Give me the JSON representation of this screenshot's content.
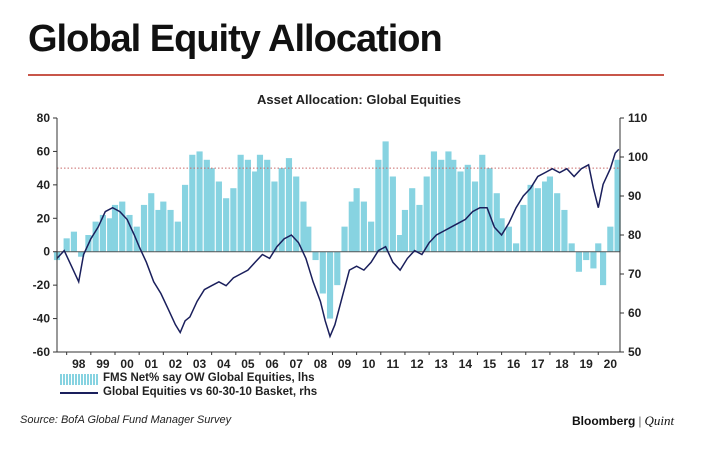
{
  "headline": "Global Equity Allocation",
  "source": "Source: BofA Global Fund Manager Survey",
  "brand": {
    "name": "Bloomberg",
    "separator": "|",
    "sub": "Quint"
  },
  "colors": {
    "bar": "#87d3e1",
    "line": "#1a1f5c",
    "rule": "#c8564a",
    "ref_line": "#c96b6b"
  },
  "chart_data": {
    "type": "bar+line",
    "title": "Asset Allocation: Global Equities",
    "x_ticks": [
      "98",
      "99",
      "00",
      "01",
      "02",
      "03",
      "04",
      "05",
      "06",
      "07",
      "08",
      "09",
      "10",
      "11",
      "12",
      "13",
      "14",
      "15",
      "16",
      "17",
      "18",
      "19",
      "20"
    ],
    "x_range": [
      1997.6,
      2020.9
    ],
    "y_left": {
      "range": [
        -60,
        80
      ],
      "ticks": [
        -60,
        -40,
        -20,
        0,
        20,
        40,
        60,
        80
      ]
    },
    "y_right": {
      "range": [
        50,
        110
      ],
      "ticks": [
        50,
        60,
        70,
        80,
        90,
        100,
        110
      ]
    },
    "reference_line": {
      "axis": "left",
      "value": 50,
      "style": "dotted"
    },
    "legend": [
      {
        "name": "FMS Net% say OW Global Equities, lhs",
        "kind": "bar"
      },
      {
        "name": "Global Equities vs 60-30-10 Basket, rhs",
        "kind": "line"
      }
    ],
    "bar_series": {
      "name": "FMS Net% say OW Global Equities, lhs",
      "points": [
        [
          1997.6,
          -5
        ],
        [
          1998.0,
          8
        ],
        [
          1998.3,
          12
        ],
        [
          1998.6,
          -3
        ],
        [
          1998.9,
          10
        ],
        [
          1999.2,
          18
        ],
        [
          1999.5,
          22
        ],
        [
          1999.8,
          20
        ],
        [
          2000.0,
          28
        ],
        [
          2000.3,
          30
        ],
        [
          2000.6,
          22
        ],
        [
          2000.9,
          15
        ],
        [
          2001.2,
          28
        ],
        [
          2001.5,
          35
        ],
        [
          2001.8,
          25
        ],
        [
          2002.0,
          30
        ],
        [
          2002.3,
          25
        ],
        [
          2002.6,
          18
        ],
        [
          2002.9,
          40
        ],
        [
          2003.2,
          58
        ],
        [
          2003.5,
          60
        ],
        [
          2003.8,
          55
        ],
        [
          2004.0,
          50
        ],
        [
          2004.3,
          42
        ],
        [
          2004.6,
          32
        ],
        [
          2004.9,
          38
        ],
        [
          2005.2,
          58
        ],
        [
          2005.5,
          55
        ],
        [
          2005.8,
          48
        ],
        [
          2006.0,
          58
        ],
        [
          2006.3,
          55
        ],
        [
          2006.6,
          42
        ],
        [
          2006.9,
          50
        ],
        [
          2007.2,
          56
        ],
        [
          2007.5,
          45
        ],
        [
          2007.8,
          30
        ],
        [
          2008.0,
          15
        ],
        [
          2008.3,
          -5
        ],
        [
          2008.6,
          -25
        ],
        [
          2008.9,
          -40
        ],
        [
          2009.2,
          -20
        ],
        [
          2009.5,
          15
        ],
        [
          2009.8,
          30
        ],
        [
          2010.0,
          38
        ],
        [
          2010.3,
          30
        ],
        [
          2010.6,
          18
        ],
        [
          2010.9,
          55
        ],
        [
          2011.2,
          66
        ],
        [
          2011.5,
          45
        ],
        [
          2011.8,
          10
        ],
        [
          2012.0,
          25
        ],
        [
          2012.3,
          38
        ],
        [
          2012.6,
          28
        ],
        [
          2012.9,
          45
        ],
        [
          2013.2,
          60
        ],
        [
          2013.5,
          55
        ],
        [
          2013.8,
          60
        ],
        [
          2014.0,
          55
        ],
        [
          2014.3,
          48
        ],
        [
          2014.6,
          52
        ],
        [
          2014.9,
          42
        ],
        [
          2015.2,
          58
        ],
        [
          2015.5,
          50
        ],
        [
          2015.8,
          35
        ],
        [
          2016.0,
          20
        ],
        [
          2016.3,
          15
        ],
        [
          2016.6,
          5
        ],
        [
          2016.9,
          28
        ],
        [
          2017.2,
          40
        ],
        [
          2017.5,
          38
        ],
        [
          2017.8,
          42
        ],
        [
          2018.0,
          45
        ],
        [
          2018.3,
          35
        ],
        [
          2018.6,
          25
        ],
        [
          2018.9,
          5
        ],
        [
          2019.2,
          -12
        ],
        [
          2019.5,
          -5
        ],
        [
          2019.8,
          -10
        ],
        [
          2020.0,
          5
        ],
        [
          2020.2,
          -20
        ],
        [
          2020.5,
          15
        ],
        [
          2020.8,
          55
        ]
      ]
    },
    "line_series": {
      "name": "Global Equities vs 60-30-10 Basket, rhs",
      "points": [
        [
          1997.6,
          74
        ],
        [
          1997.9,
          76
        ],
        [
          1998.2,
          72
        ],
        [
          1998.5,
          68
        ],
        [
          1998.7,
          75
        ],
        [
          1999.0,
          79
        ],
        [
          1999.3,
          82
        ],
        [
          1999.6,
          86
        ],
        [
          1999.9,
          87
        ],
        [
          2000.2,
          86
        ],
        [
          2000.5,
          84
        ],
        [
          2000.8,
          80
        ],
        [
          2001.0,
          77
        ],
        [
          2001.3,
          73
        ],
        [
          2001.6,
          68
        ],
        [
          2001.9,
          65
        ],
        [
          2002.2,
          61
        ],
        [
          2002.5,
          57
        ],
        [
          2002.7,
          55
        ],
        [
          2002.9,
          58
        ],
        [
          2003.1,
          59
        ],
        [
          2003.4,
          63
        ],
        [
          2003.7,
          66
        ],
        [
          2004.0,
          67
        ],
        [
          2004.3,
          68
        ],
        [
          2004.6,
          67
        ],
        [
          2004.9,
          69
        ],
        [
          2005.2,
          70
        ],
        [
          2005.5,
          71
        ],
        [
          2005.8,
          73
        ],
        [
          2006.1,
          75
        ],
        [
          2006.4,
          74
        ],
        [
          2006.7,
          77
        ],
        [
          2007.0,
          79
        ],
        [
          2007.3,
          80
        ],
        [
          2007.6,
          78
        ],
        [
          2007.9,
          74
        ],
        [
          2008.2,
          68
        ],
        [
          2008.5,
          63
        ],
        [
          2008.7,
          58
        ],
        [
          2008.9,
          54
        ],
        [
          2009.1,
          57
        ],
        [
          2009.4,
          64
        ],
        [
          2009.7,
          71
        ],
        [
          2010.0,
          72
        ],
        [
          2010.3,
          71
        ],
        [
          2010.6,
          73
        ],
        [
          2010.9,
          76
        ],
        [
          2011.2,
          77
        ],
        [
          2011.5,
          73
        ],
        [
          2011.8,
          71
        ],
        [
          2012.1,
          74
        ],
        [
          2012.4,
          76
        ],
        [
          2012.7,
          75
        ],
        [
          2013.0,
          78
        ],
        [
          2013.3,
          80
        ],
        [
          2013.6,
          81
        ],
        [
          2013.9,
          82
        ],
        [
          2014.2,
          83
        ],
        [
          2014.5,
          84
        ],
        [
          2014.8,
          86
        ],
        [
          2015.1,
          87
        ],
        [
          2015.4,
          87
        ],
        [
          2015.7,
          82
        ],
        [
          2016.0,
          80
        ],
        [
          2016.3,
          83
        ],
        [
          2016.6,
          87
        ],
        [
          2016.9,
          90
        ],
        [
          2017.2,
          92
        ],
        [
          2017.5,
          95
        ],
        [
          2017.8,
          96
        ],
        [
          2018.1,
          97
        ],
        [
          2018.4,
          96
        ],
        [
          2018.7,
          97
        ],
        [
          2019.0,
          95
        ],
        [
          2019.3,
          97
        ],
        [
          2019.6,
          98
        ],
        [
          2019.8,
          92
        ],
        [
          2020.0,
          87
        ],
        [
          2020.2,
          93
        ],
        [
          2020.5,
          97
        ],
        [
          2020.7,
          101
        ],
        [
          2020.85,
          102
        ]
      ]
    }
  }
}
